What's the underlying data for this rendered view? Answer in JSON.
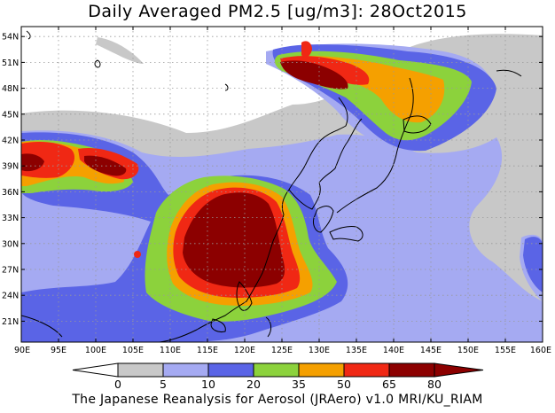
{
  "title": "Daily Averaged PM2.5 [ug/m3]: 28Oct2015",
  "footer": "The Japanese Reanalysis for Aerosol (JRAero) v1.0 MRI/KU_RIAM",
  "lat_labels": [
    "54N",
    "51N",
    "48N",
    "45N",
    "42N",
    "39N",
    "36N",
    "33N",
    "30N",
    "27N",
    "24N",
    "21N"
  ],
  "lon_labels": [
    "90E",
    "95E",
    "100E",
    "105E",
    "110E",
    "115E",
    "120E",
    "125E",
    "130E",
    "135E",
    "140E",
    "145E",
    "150E",
    "155E",
    "160E"
  ],
  "colorbar": {
    "labels": [
      "0",
      "5",
      "10",
      "20",
      "35",
      "50",
      "65",
      "80"
    ],
    "colors": [
      "#ffffff",
      "#c8c8c8",
      "#a5aaf2",
      "#5a64e6",
      "#8cd23c",
      "#f5a000",
      "#f02814",
      "#8c0000"
    ]
  }
}
